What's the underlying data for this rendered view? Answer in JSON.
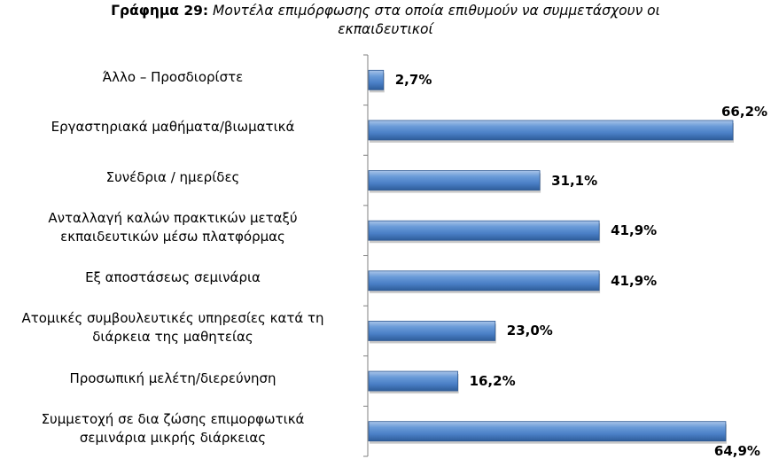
{
  "title": {
    "prefix": "Γράφημα  29:",
    "text_line1": " Μοντέλα επιμόρφωσης στα οποία επιθυμούν να συμμετάσχουν οι",
    "text_line2": "εκπαιδευτικοί"
  },
  "chart_data": {
    "type": "bar",
    "orientation": "horizontal",
    "categories": [
      [
        "Άλλο – Προσδιορίστε"
      ],
      [
        "Εργαστηριακά μαθήματα/βιωματικά"
      ],
      [
        "Συνέδρια / ημερίδες"
      ],
      [
        "Ανταλλαγή καλών πρακτικών μεταξύ",
        "εκπαιδευτικών μέσω πλατφόρμας"
      ],
      [
        "Εξ αποστάσεως σεμινάρια"
      ],
      [
        "Ατομικές συμβουλευτικές υπηρεσίες κατά τη",
        "διάρκεια της μαθητείας"
      ],
      [
        "Προσωπική μελέτη/διερεύνηση"
      ],
      [
        "Συμμετοχή σε δια ζώσης επιμορφωτικά",
        "σεμινάρια μικρής διάρκειας"
      ]
    ],
    "values": [
      2.7,
      66.2,
      31.1,
      41.9,
      41.9,
      23.0,
      16.2,
      64.9
    ],
    "value_labels": [
      "2,7%",
      "66,2%",
      "31,1%",
      "41,9%",
      "41,9%",
      "23,0%",
      "16,2%",
      "64,9%"
    ],
    "xlim": [
      0,
      100
    ],
    "bar_color": "#4F81BD",
    "grid": false
  }
}
